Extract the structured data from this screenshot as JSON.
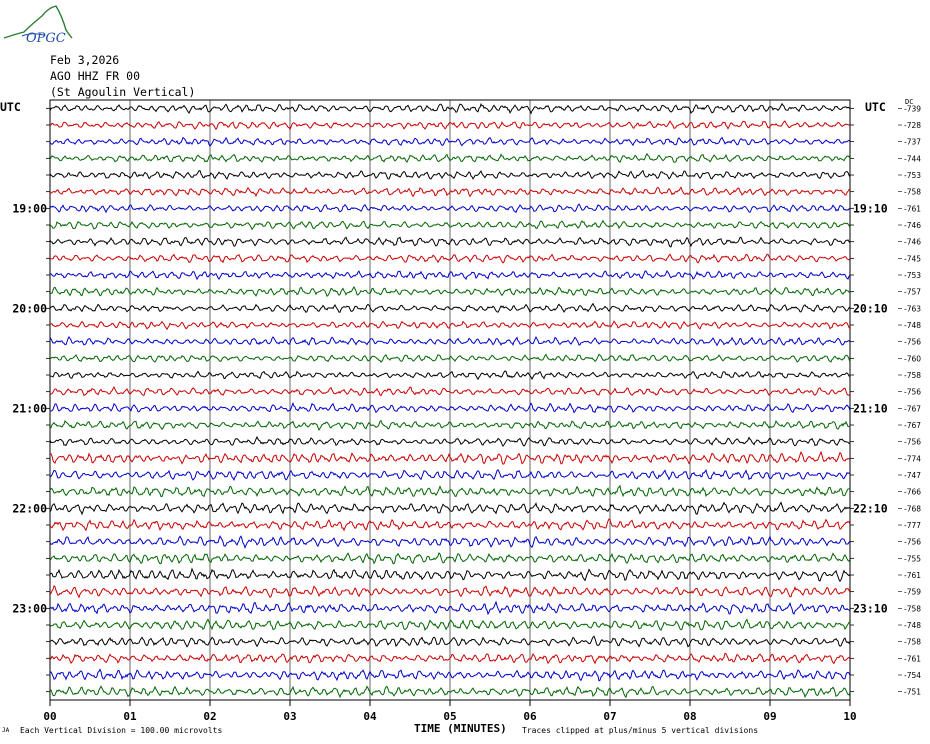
{
  "logo": {
    "text": "OPGC",
    "icon": "mountain-wave-logo",
    "color": "#2e7d32"
  },
  "header": {
    "date": "Feb 3,2026",
    "station": "AGO HHZ FR 00",
    "location": "(St Agoulin Vertical)"
  },
  "left_axis_label": "UTC",
  "right_axis_label": "UTC",
  "right_column_label": "DC",
  "footer": {
    "scale_note": "Each Vertical Division =  100.00 microvolts",
    "clip_note": "Traces clipped at plus/minus 5 vertical divisions",
    "corner_mark": "JA"
  },
  "chart_data": {
    "type": "line",
    "title": "",
    "xlabel": "TIME (MINUTES)",
    "ylabel": "",
    "xlim": [
      0,
      10
    ],
    "x_ticks": [
      "00",
      "01",
      "02",
      "03",
      "04",
      "05",
      "06",
      "07",
      "08",
      "09",
      "10"
    ],
    "grid": true,
    "trace_colors": [
      "#000000",
      "#cc0000",
      "#0000cc",
      "#006600"
    ],
    "left_hour_labels": [
      {
        "row": 6,
        "label": "19:00"
      },
      {
        "row": 12,
        "label": "20:00"
      },
      {
        "row": 18,
        "label": "21:00"
      },
      {
        "row": 24,
        "label": "22:00"
      },
      {
        "row": 30,
        "label": "23:00"
      }
    ],
    "right_hour_labels": [
      {
        "row": 6,
        "label": "19:10"
      },
      {
        "row": 12,
        "label": "20:10"
      },
      {
        "row": 18,
        "label": "21:10"
      },
      {
        "row": 24,
        "label": "22:10"
      },
      {
        "row": 30,
        "label": "23:10"
      }
    ],
    "dc_offsets": [
      "-739",
      "-728",
      "-737",
      "-744",
      "-753",
      "-758",
      "-761",
      "-746",
      "-746",
      "-745",
      "-753",
      "-757",
      "-763",
      "-748",
      "-756",
      "-760",
      "-758",
      "-756",
      "-767",
      "-767",
      "-756",
      "-774",
      "-747",
      "-766",
      "-768",
      "-777",
      "-756",
      "-755",
      "-761",
      "-759",
      "-758",
      "-748",
      "-758",
      "-761",
      "-754",
      "-751"
    ]
  }
}
